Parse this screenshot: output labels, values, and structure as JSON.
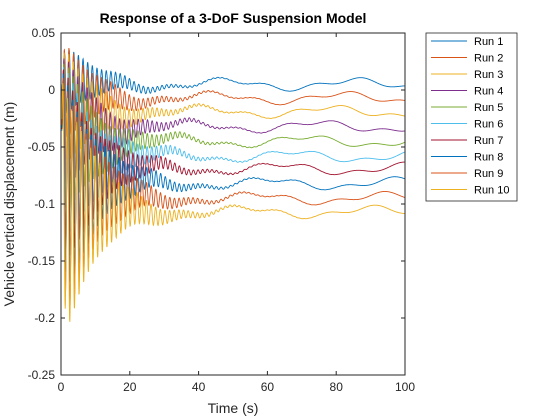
{
  "chart_data": {
    "type": "line",
    "title": "Response of a 3-DoF Suspension Model",
    "xlabel": "Time (s)",
    "ylabel": "Vehicle vertical displacement (m)",
    "xlim": [
      0,
      100
    ],
    "ylim": [
      -0.25,
      0.05
    ],
    "xticks": [
      0,
      20,
      40,
      60,
      80,
      100
    ],
    "xtick_labels": [
      "0",
      "20",
      "40",
      "60",
      "80",
      "100"
    ],
    "yticks": [
      0.05,
      0,
      -0.05,
      -0.1,
      -0.15,
      -0.2,
      -0.25
    ],
    "ytick_labels": [
      "0.05",
      "0",
      "-0.05",
      "-0.1",
      "-0.15",
      "-0.2",
      "-0.25"
    ],
    "grid": false,
    "legend_position": "outside-right",
    "osc_period": 1.35,
    "osc_decay_time": 10,
    "series": [
      {
        "name": "Run 1",
        "color": "#0072BD",
        "steady": 0.005,
        "wave_amp": 0.004,
        "wave_phase": 0.0,
        "osc_amp": 0.035
      },
      {
        "name": "Run 2",
        "color": "#D95319",
        "steady": -0.007,
        "wave_amp": 0.004,
        "wave_phase": 0.6,
        "osc_amp": 0.05
      },
      {
        "name": "Run 3",
        "color": "#EDB120",
        "steady": -0.019,
        "wave_amp": 0.004,
        "wave_phase": 1.2,
        "osc_amp": 0.06
      },
      {
        "name": "Run 4",
        "color": "#7E2F8E",
        "steady": -0.032,
        "wave_amp": 0.004,
        "wave_phase": 1.8,
        "osc_amp": 0.07
      },
      {
        "name": "Run 5",
        "color": "#77AC30",
        "steady": -0.045,
        "wave_amp": 0.004,
        "wave_phase": 2.4,
        "osc_amp": 0.08
      },
      {
        "name": "Run 6",
        "color": "#4DBEEE",
        "steady": -0.058,
        "wave_amp": 0.004,
        "wave_phase": 3.0,
        "osc_amp": 0.09
      },
      {
        "name": "Run 7",
        "color": "#A2142F",
        "steady": -0.069,
        "wave_amp": 0.004,
        "wave_phase": 3.6,
        "osc_amp": 0.1
      },
      {
        "name": "Run 8",
        "color": "#0072BD",
        "steady": -0.082,
        "wave_amp": 0.004,
        "wave_phase": 4.2,
        "osc_amp": 0.11
      },
      {
        "name": "Run 9",
        "color": "#D95319",
        "steady": -0.095,
        "wave_amp": 0.004,
        "wave_phase": 4.8,
        "osc_amp": 0.12
      },
      {
        "name": "Run 10",
        "color": "#EDB120",
        "steady": -0.107,
        "wave_amp": 0.004,
        "wave_phase": 5.4,
        "osc_amp": 0.125
      }
    ]
  }
}
